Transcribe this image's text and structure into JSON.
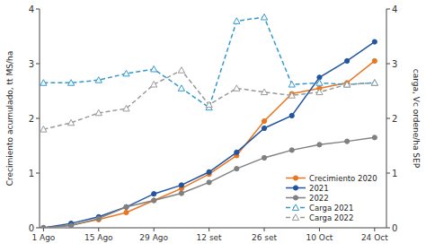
{
  "chart_data": {
    "type": "line",
    "x": [
      0,
      7,
      14,
      21,
      28,
      35,
      42,
      49,
      56,
      63,
      70,
      77,
      84
    ],
    "xlim": [
      -1,
      87
    ],
    "xticks": [
      {
        "value": 0,
        "label": "1 Ago"
      },
      {
        "value": 14,
        "label": "15 Ago"
      },
      {
        "value": 28,
        "label": "29 Ago"
      },
      {
        "value": 42,
        "label": "12 set"
      },
      {
        "value": 56,
        "label": "26 set"
      },
      {
        "value": 70,
        "label": "10 Oct"
      },
      {
        "value": 84,
        "label": "24 Oct"
      }
    ],
    "ylabel": "Crecimiento acumulado, tt MS/ha",
    "y2label": "carga, Vc ordene/ha SEP",
    "ylim": [
      0,
      4
    ],
    "yticks": [
      0,
      1,
      2,
      3,
      4
    ],
    "y2lim": [
      0,
      4
    ],
    "y2ticks": [
      0,
      1,
      2,
      3,
      4
    ],
    "grid": false,
    "legend": "lower right",
    "series": [
      {
        "name": "Crecimiento 2020",
        "color": "#E87722",
        "marker": "circle",
        "line_style": "solid",
        "values": [
          0,
          0.05,
          0.15,
          0.28,
          0.5,
          0.72,
          0.98,
          1.32,
          1.95,
          2.45,
          2.55,
          2.65,
          3.05
        ]
      },
      {
        "name": "2021",
        "color": "#2255A0",
        "marker": "circle",
        "line_style": "solid",
        "values": [
          0,
          0.08,
          0.2,
          0.38,
          0.62,
          0.78,
          1.02,
          1.38,
          1.82,
          2.05,
          2.75,
          3.05,
          3.4
        ]
      },
      {
        "name": "2022",
        "color": "#808080",
        "marker": "circle",
        "line_style": "solid",
        "values": [
          0,
          0.04,
          0.17,
          0.38,
          0.5,
          0.63,
          0.83,
          1.08,
          1.28,
          1.42,
          1.52,
          1.58,
          1.65
        ]
      },
      {
        "name": "Carga 2021",
        "color": "#3399CC",
        "marker": "triangle-open",
        "line_style": "dashed",
        "axis": "y2",
        "values": [
          2.65,
          2.65,
          2.7,
          2.82,
          2.9,
          2.55,
          2.2,
          3.78,
          3.85,
          2.62,
          2.65,
          2.62,
          2.65
        ]
      },
      {
        "name": "Carga 2022",
        "color": "#999999",
        "marker": "triangle-open",
        "line_style": "dashed",
        "axis": "y2",
        "values": [
          1.8,
          1.92,
          2.1,
          2.18,
          2.62,
          2.88,
          2.25,
          2.55,
          2.48,
          2.42,
          2.48,
          2.62,
          2.65
        ]
      }
    ]
  }
}
